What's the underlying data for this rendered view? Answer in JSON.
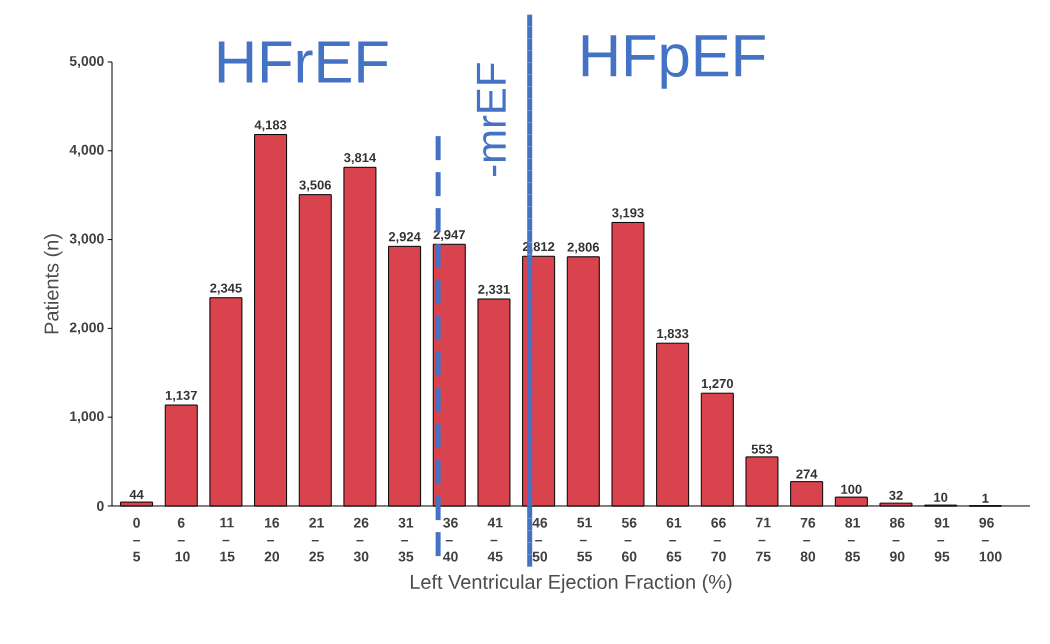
{
  "chart_data": {
    "type": "bar",
    "xlabel": "Left Ventricular Ejection Fraction (%)",
    "ylabel": "Patients (n)",
    "categories": [
      "0 – 5",
      "6 – 10",
      "11 – 15",
      "16 – 20",
      "21 – 25",
      "26 – 30",
      "31 – 35",
      "36 – 40",
      "41 – 45",
      "46 – 50",
      "51 – 55",
      "56 – 60",
      "61 – 65",
      "66 – 70",
      "71 – 75",
      "76 – 80",
      "81 – 85",
      "86 – 90",
      "91 – 95",
      "96 – 100"
    ],
    "values": [
      44,
      1137,
      2345,
      4183,
      3506,
      3814,
      2924,
      2947,
      2331,
      2812,
      2806,
      3193,
      1833,
      1270,
      553,
      274,
      100,
      32,
      10,
      1
    ],
    "value_labels": [
      "44",
      "1,137",
      "2,345",
      "4,183",
      "3,506",
      "3,814",
      "2,924",
      "2,947",
      "2,331",
      "2,812",
      "2,806",
      "3,193",
      "1,833",
      "1,270",
      "553",
      "274",
      "100",
      "32",
      "10",
      "1"
    ],
    "color": "#d9434e",
    "ylim": [
      0,
      5000
    ],
    "yticks": [
      {
        "value": 0,
        "label": "0"
      },
      {
        "value": 1000,
        "label": "1,000"
      },
      {
        "value": 2000,
        "label": "2,000"
      },
      {
        "value": 3000,
        "label": "3,000"
      },
      {
        "value": 4000,
        "label": "4,000"
      },
      {
        "value": 5000,
        "label": "5,000"
      }
    ],
    "annotations": [
      "HFrEF",
      "-mrEF",
      "HFpEF"
    ]
  }
}
